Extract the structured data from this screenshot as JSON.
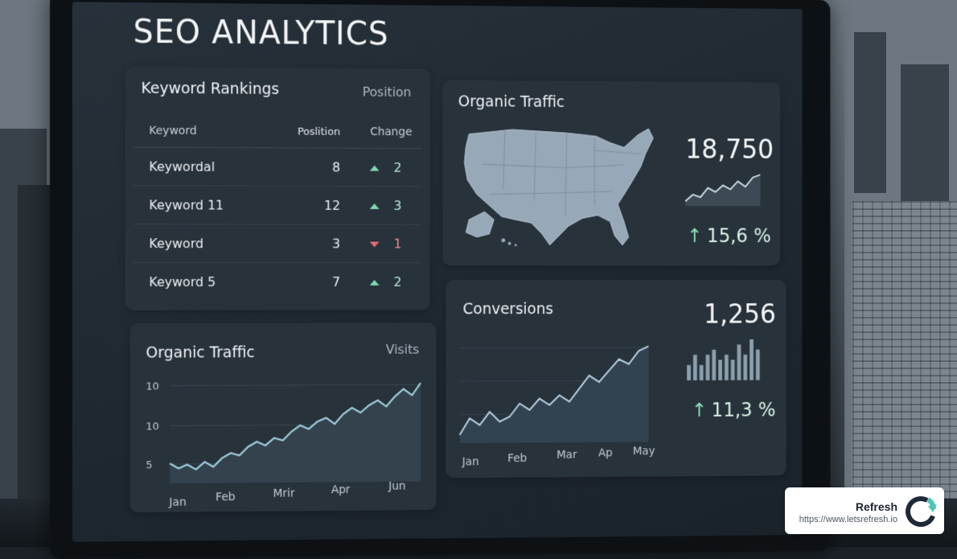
{
  "dashboard": {
    "title": "SEO ANALYTICS"
  },
  "keyword_rankings": {
    "title": "Keyword Rankings",
    "meta": "Position",
    "columns": [
      "Keyword",
      "Poslition",
      "Change"
    ],
    "rows": [
      {
        "keyword": "Keywordal",
        "position": "8",
        "change": "2",
        "direction": "up"
      },
      {
        "keyword": "Keyword 11",
        "position": "12",
        "change": "3",
        "direction": "up"
      },
      {
        "keyword": "Keyword",
        "position": "3",
        "change": "1",
        "direction": "down"
      },
      {
        "keyword": "Keyword 5",
        "position": "7",
        "change": "2",
        "direction": "up"
      }
    ]
  },
  "organic_traffic_summary": {
    "title": "Organic Traffic",
    "value": "18,750",
    "change": "15,6 %",
    "change_arrow": "↑",
    "map_icon": "usa-map-icon"
  },
  "organic_traffic_chart": {
    "title": "Organic Traffic",
    "meta": "Visits",
    "chart_data": {
      "type": "area",
      "y_tick_labels": [
        "10",
        "10",
        "5"
      ],
      "x_tick_labels": [
        "Jan",
        "Feb",
        "Mrir",
        "Apr",
        "Jun"
      ],
      "values": [
        5.6,
        5.2,
        5.5,
        5.1,
        5.7,
        5.3,
        6.0,
        6.4,
        6.2,
        6.9,
        7.3,
        7.0,
        7.6,
        7.4,
        8.1,
        8.6,
        8.3,
        8.9,
        9.2,
        8.7,
        9.5,
        10.0,
        9.6,
        10.2,
        10.6,
        10.1,
        10.9,
        11.5,
        11.0,
        12.0
      ],
      "grid": true,
      "color": "#9fd0df"
    }
  },
  "conversions": {
    "title": "Conversions",
    "value": "1,256",
    "change": "11,3 %",
    "change_arrow": "↑",
    "chart_data": {
      "type": "area",
      "x_tick_labels": [
        "Jan",
        "Feb",
        "Mar",
        "Ap",
        "May"
      ],
      "values": [
        2.0,
        3.0,
        2.6,
        3.4,
        2.8,
        3.1,
        3.9,
        3.5,
        4.2,
        3.8,
        4.4,
        4.0,
        4.8,
        5.6,
        5.2,
        5.9,
        6.6,
        6.3,
        7.1,
        7.4
      ],
      "grid": true,
      "color": "#b9d3e6"
    },
    "mini_bar_chart": {
      "type": "bar",
      "values": [
        3,
        5,
        3,
        5,
        6,
        4,
        5,
        4,
        7,
        5,
        8,
        6
      ]
    }
  },
  "organic_traffic_sparkline": {
    "values": [
      1,
      2,
      1.6,
      3,
      2.4,
      3.4,
      2.8,
      4,
      3.2,
      4.6,
      5
    ]
  },
  "watermark": {
    "brand": "Refresh",
    "url": "https://www.letsrefresh.io",
    "logo_icon": "refresh-logo-icon"
  },
  "colors": {
    "screen_bg": "#1e272f",
    "card_bg": "#28323b",
    "positive": "#7fd9b0",
    "negative": "#e16d76",
    "line": "#cfe6f0"
  }
}
